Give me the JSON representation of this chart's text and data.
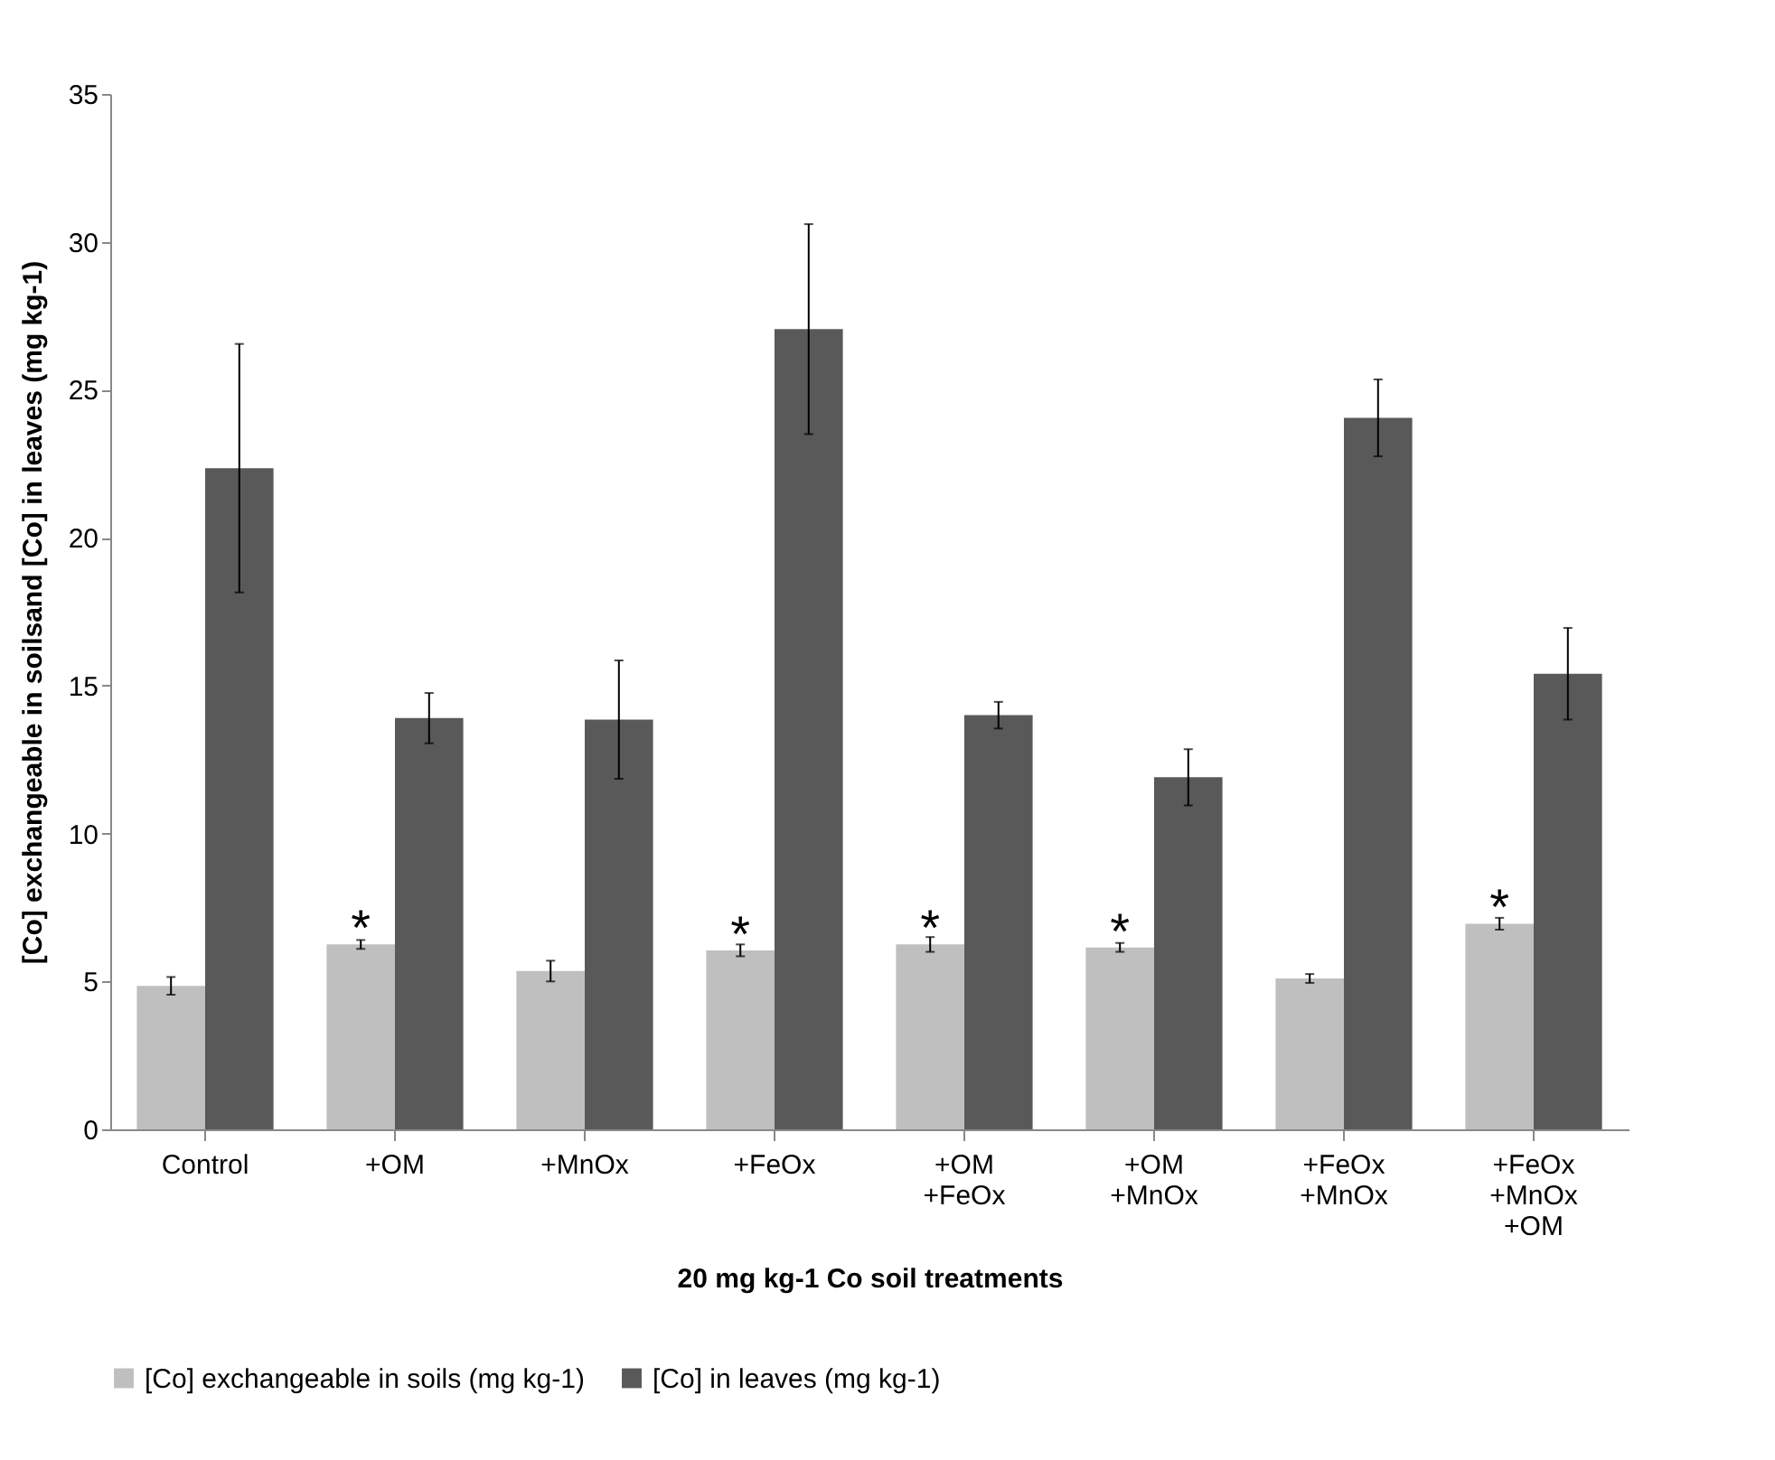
{
  "chart_data": {
    "type": "bar",
    "xlabel": "20 mg kg-1 Co soil treatments",
    "ylabel": "[Co] exchangeable in soilsand [Co] in leaves (mg kg-1)",
    "categories": [
      "Control",
      "+OM",
      "+MnOx",
      "+FeOx",
      "+OM +FeOx",
      "+OM +MnOx",
      "+FeOx +MnOx",
      "+FeOx +MnOx +OM"
    ],
    "series": [
      {
        "name": "[Co] exchangeable  in soils (mg kg-1)",
        "color": "#bfbfbf",
        "values": [
          4.85,
          6.25,
          5.35,
          6.05,
          6.25,
          6.15,
          5.1,
          6.95
        ],
        "errors": [
          0.3,
          0.15,
          0.35,
          0.2,
          0.25,
          0.15,
          0.15,
          0.2
        ]
      },
      {
        "name": "[Co] in leaves (mg kg-1)",
        "color": "#595959",
        "values": [
          22.35,
          13.9,
          13.85,
          27.05,
          14.0,
          11.9,
          24.05,
          15.4
        ],
        "errors": [
          4.2,
          0.85,
          2.0,
          3.55,
          0.45,
          0.95,
          1.3,
          1.55
        ]
      }
    ],
    "annotations": [
      {
        "text": "*",
        "x": "+OM",
        "y": 7.2
      },
      {
        "text": "*",
        "x": "+FeOx",
        "y": 7.0
      },
      {
        "text": "*",
        "x": "+OM +FeOx",
        "y": 7.2
      },
      {
        "text": "*",
        "x": "+OM +MnOx",
        "y": 7.1
      },
      {
        "text": "*",
        "x": "+FeOx +MnOx +OM",
        "y": 7.9
      }
    ],
    "ylim": [
      0,
      35
    ],
    "yticks": [
      0,
      5,
      10,
      15,
      20,
      25,
      30,
      35
    ],
    "grid": false,
    "legend": "bottom"
  }
}
